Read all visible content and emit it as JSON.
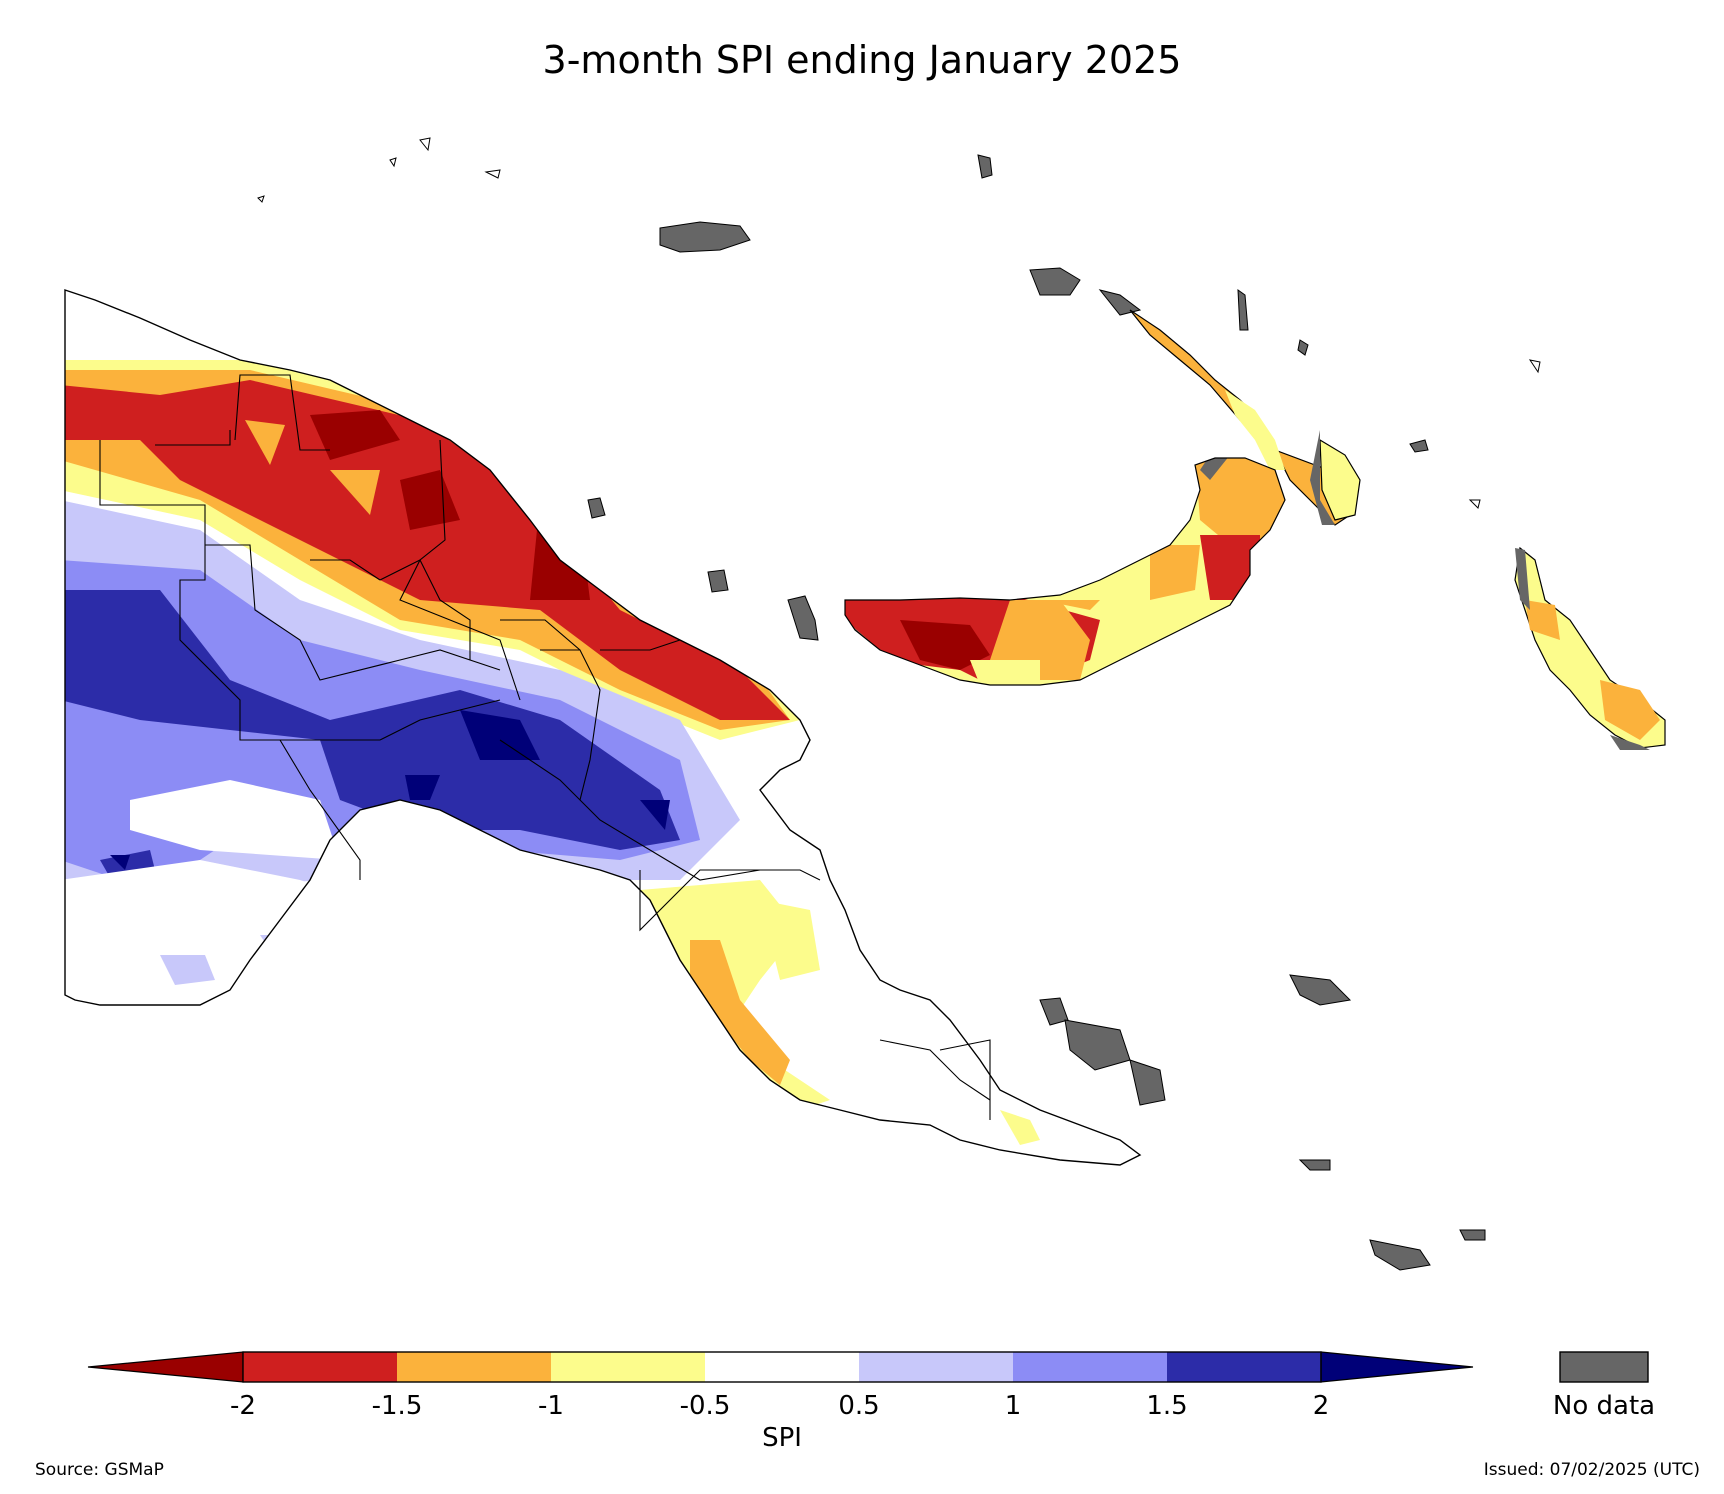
{
  "title": "3-month SPI ending January 2025",
  "legend": {
    "axis_label": "SPI",
    "ticks": [
      "-2",
      "-1.5",
      "-1",
      "-0.5",
      "0.5",
      "1",
      "1.5",
      "2"
    ],
    "bins": [
      {
        "range": "< -2",
        "color": "#9a0000"
      },
      {
        "range": "-2 to -1.5",
        "color": "#cf1f1f"
      },
      {
        "range": "-1.5 to -1",
        "color": "#fbb23c"
      },
      {
        "range": "-1 to -0.5",
        "color": "#fcfc8c"
      },
      {
        "range": "-0.5 to 0.5",
        "color": "#ffffff"
      },
      {
        "range": "0.5 to 1",
        "color": "#c8c8fa"
      },
      {
        "range": "1 to 1.5",
        "color": "#8c8cf5"
      },
      {
        "range": "1.5 to 2",
        "color": "#2c2ca8"
      },
      {
        "range": "> 2",
        "color": "#000078"
      }
    ],
    "nodata_label": "No data",
    "nodata_color": "#666666"
  },
  "footer": {
    "source": "Source: GSMaP",
    "issued": "Issued: 07/02/2025 (UTC)"
  }
}
